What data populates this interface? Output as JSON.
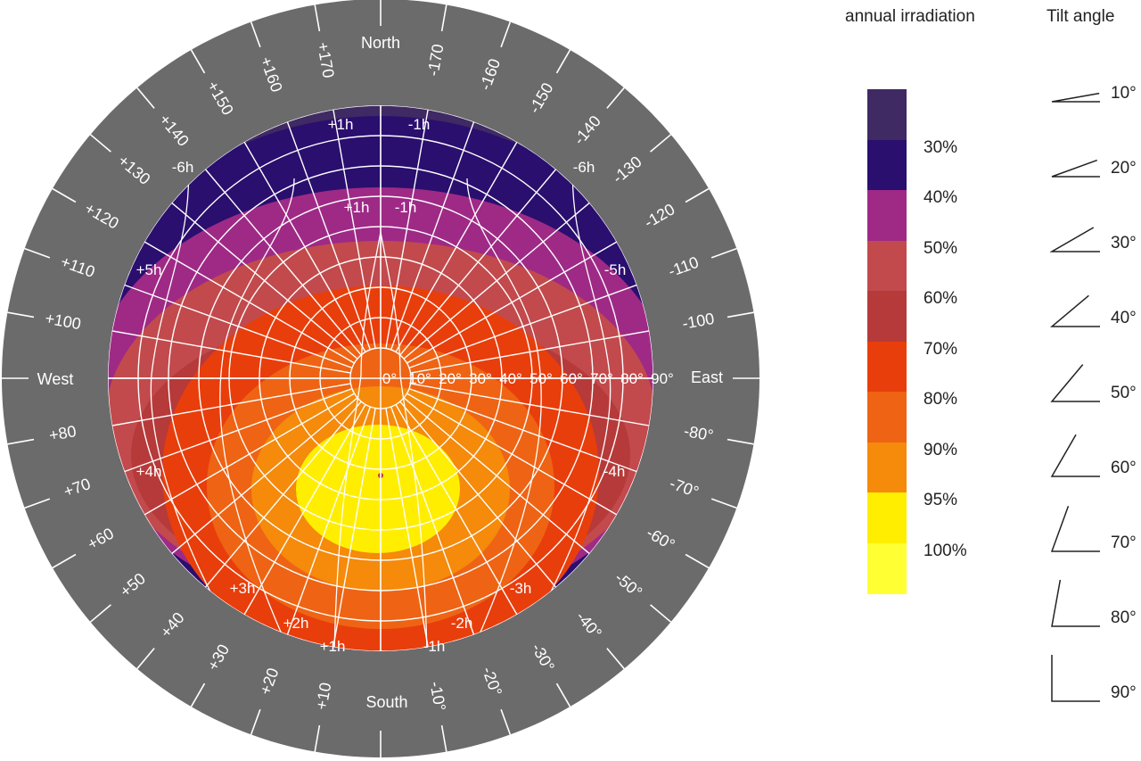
{
  "diagram": {
    "directions": {
      "north": "North",
      "south": "South",
      "east": "East",
      "west": "West"
    },
    "outer_ring_labels_west": [
      "+10",
      "+20",
      "+30",
      "+40",
      "+50",
      "+60",
      "+70",
      "+80",
      "+100",
      "+110",
      "+120",
      "+130",
      "+140",
      "+150",
      "+160",
      "+170"
    ],
    "outer_ring_labels_east": [
      "-10°",
      "-20°",
      "-30°",
      "-40°",
      "-50°",
      "-60°",
      "-70°",
      "-80°",
      "-100",
      "-110",
      "-120",
      "-130",
      "-140",
      "-150",
      "-160",
      "-170"
    ],
    "tilt_scale_labels": [
      "0°",
      "10°",
      "20°",
      "30°",
      "40°",
      "50°",
      "60°",
      "70°",
      "80°",
      "90°"
    ],
    "hour_labels": [
      "+1h",
      "-1h",
      "+1h",
      "-1h",
      "-6h",
      "-6h",
      "+5h",
      "-5h",
      "+4h",
      "-4h",
      "+3h",
      "-3h",
      "+2h",
      "-2h",
      "+1h",
      "-1h"
    ]
  },
  "legend": {
    "title": "annual irradiation",
    "levels": [
      {
        "label": "",
        "color": "#3f2a63"
      },
      {
        "label": "30%",
        "color": "#2a0f6e"
      },
      {
        "label": "40%",
        "color": "#9e2a86"
      },
      {
        "label": "50%",
        "color": "#c24a4c"
      },
      {
        "label": "60%",
        "color": "#b63a3a"
      },
      {
        "label": "70%",
        "color": "#e83e0c"
      },
      {
        "label": "80%",
        "color": "#ee6414"
      },
      {
        "label": "90%",
        "color": "#f58a0b"
      },
      {
        "label": "95%",
        "color": "#ffee00"
      },
      {
        "label": "100%",
        "color": "#ffff33"
      }
    ]
  },
  "tilt": {
    "title": "Tilt angle",
    "angles": [
      {
        "label": "10°",
        "deg": 10
      },
      {
        "label": "20°",
        "deg": 20
      },
      {
        "label": "30°",
        "deg": 30
      },
      {
        "label": "40°",
        "deg": 40
      },
      {
        "label": "50°",
        "deg": 50
      },
      {
        "label": "60°",
        "deg": 60
      },
      {
        "label": "70°",
        "deg": 70
      },
      {
        "label": "80°",
        "deg": 80
      },
      {
        "label": "90°",
        "deg": 90
      }
    ]
  },
  "colors": {
    "ring": "#6b6b6b",
    "grid": "#ffffff"
  }
}
